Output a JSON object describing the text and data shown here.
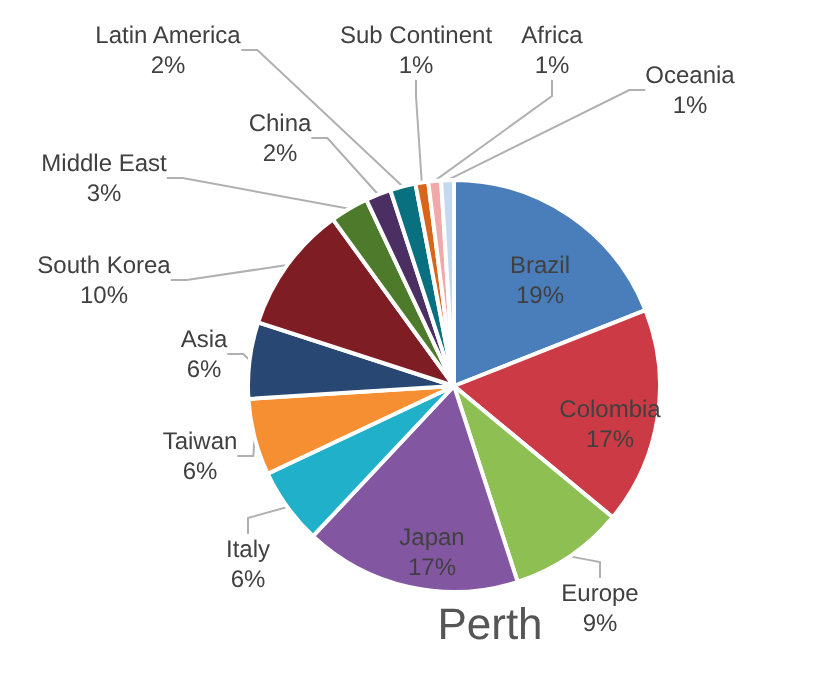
{
  "chart_data": {
    "type": "pie",
    "title": "Perth",
    "categories": [
      "Brazil",
      "Colombia",
      "Europe",
      "Japan",
      "Italy",
      "Taiwan",
      "Asia",
      "South Korea",
      "Middle East",
      "China",
      "Latin America",
      "Sub Continent",
      "Africa",
      "Oceania"
    ],
    "values": [
      19,
      17,
      9,
      17,
      6,
      6,
      6,
      10,
      3,
      2,
      2,
      1,
      1,
      1
    ],
    "value_labels": [
      "19%",
      "17%",
      "9%",
      "17%",
      "6%",
      "6%",
      "6%",
      "10%",
      "3%",
      "2%",
      "2%",
      "1%",
      "1%",
      "1%"
    ],
    "colors": [
      "#4a7ebb",
      "#cc3b45",
      "#8dbf52",
      "#8356a2",
      "#21b0c9",
      "#f58f32",
      "#284873",
      "#7f1d24",
      "#4e7a2b",
      "#4b2f63",
      "#08707e",
      "#d9651a",
      "#f0a8a8",
      "#c5d8ef"
    ],
    "legend": false
  }
}
